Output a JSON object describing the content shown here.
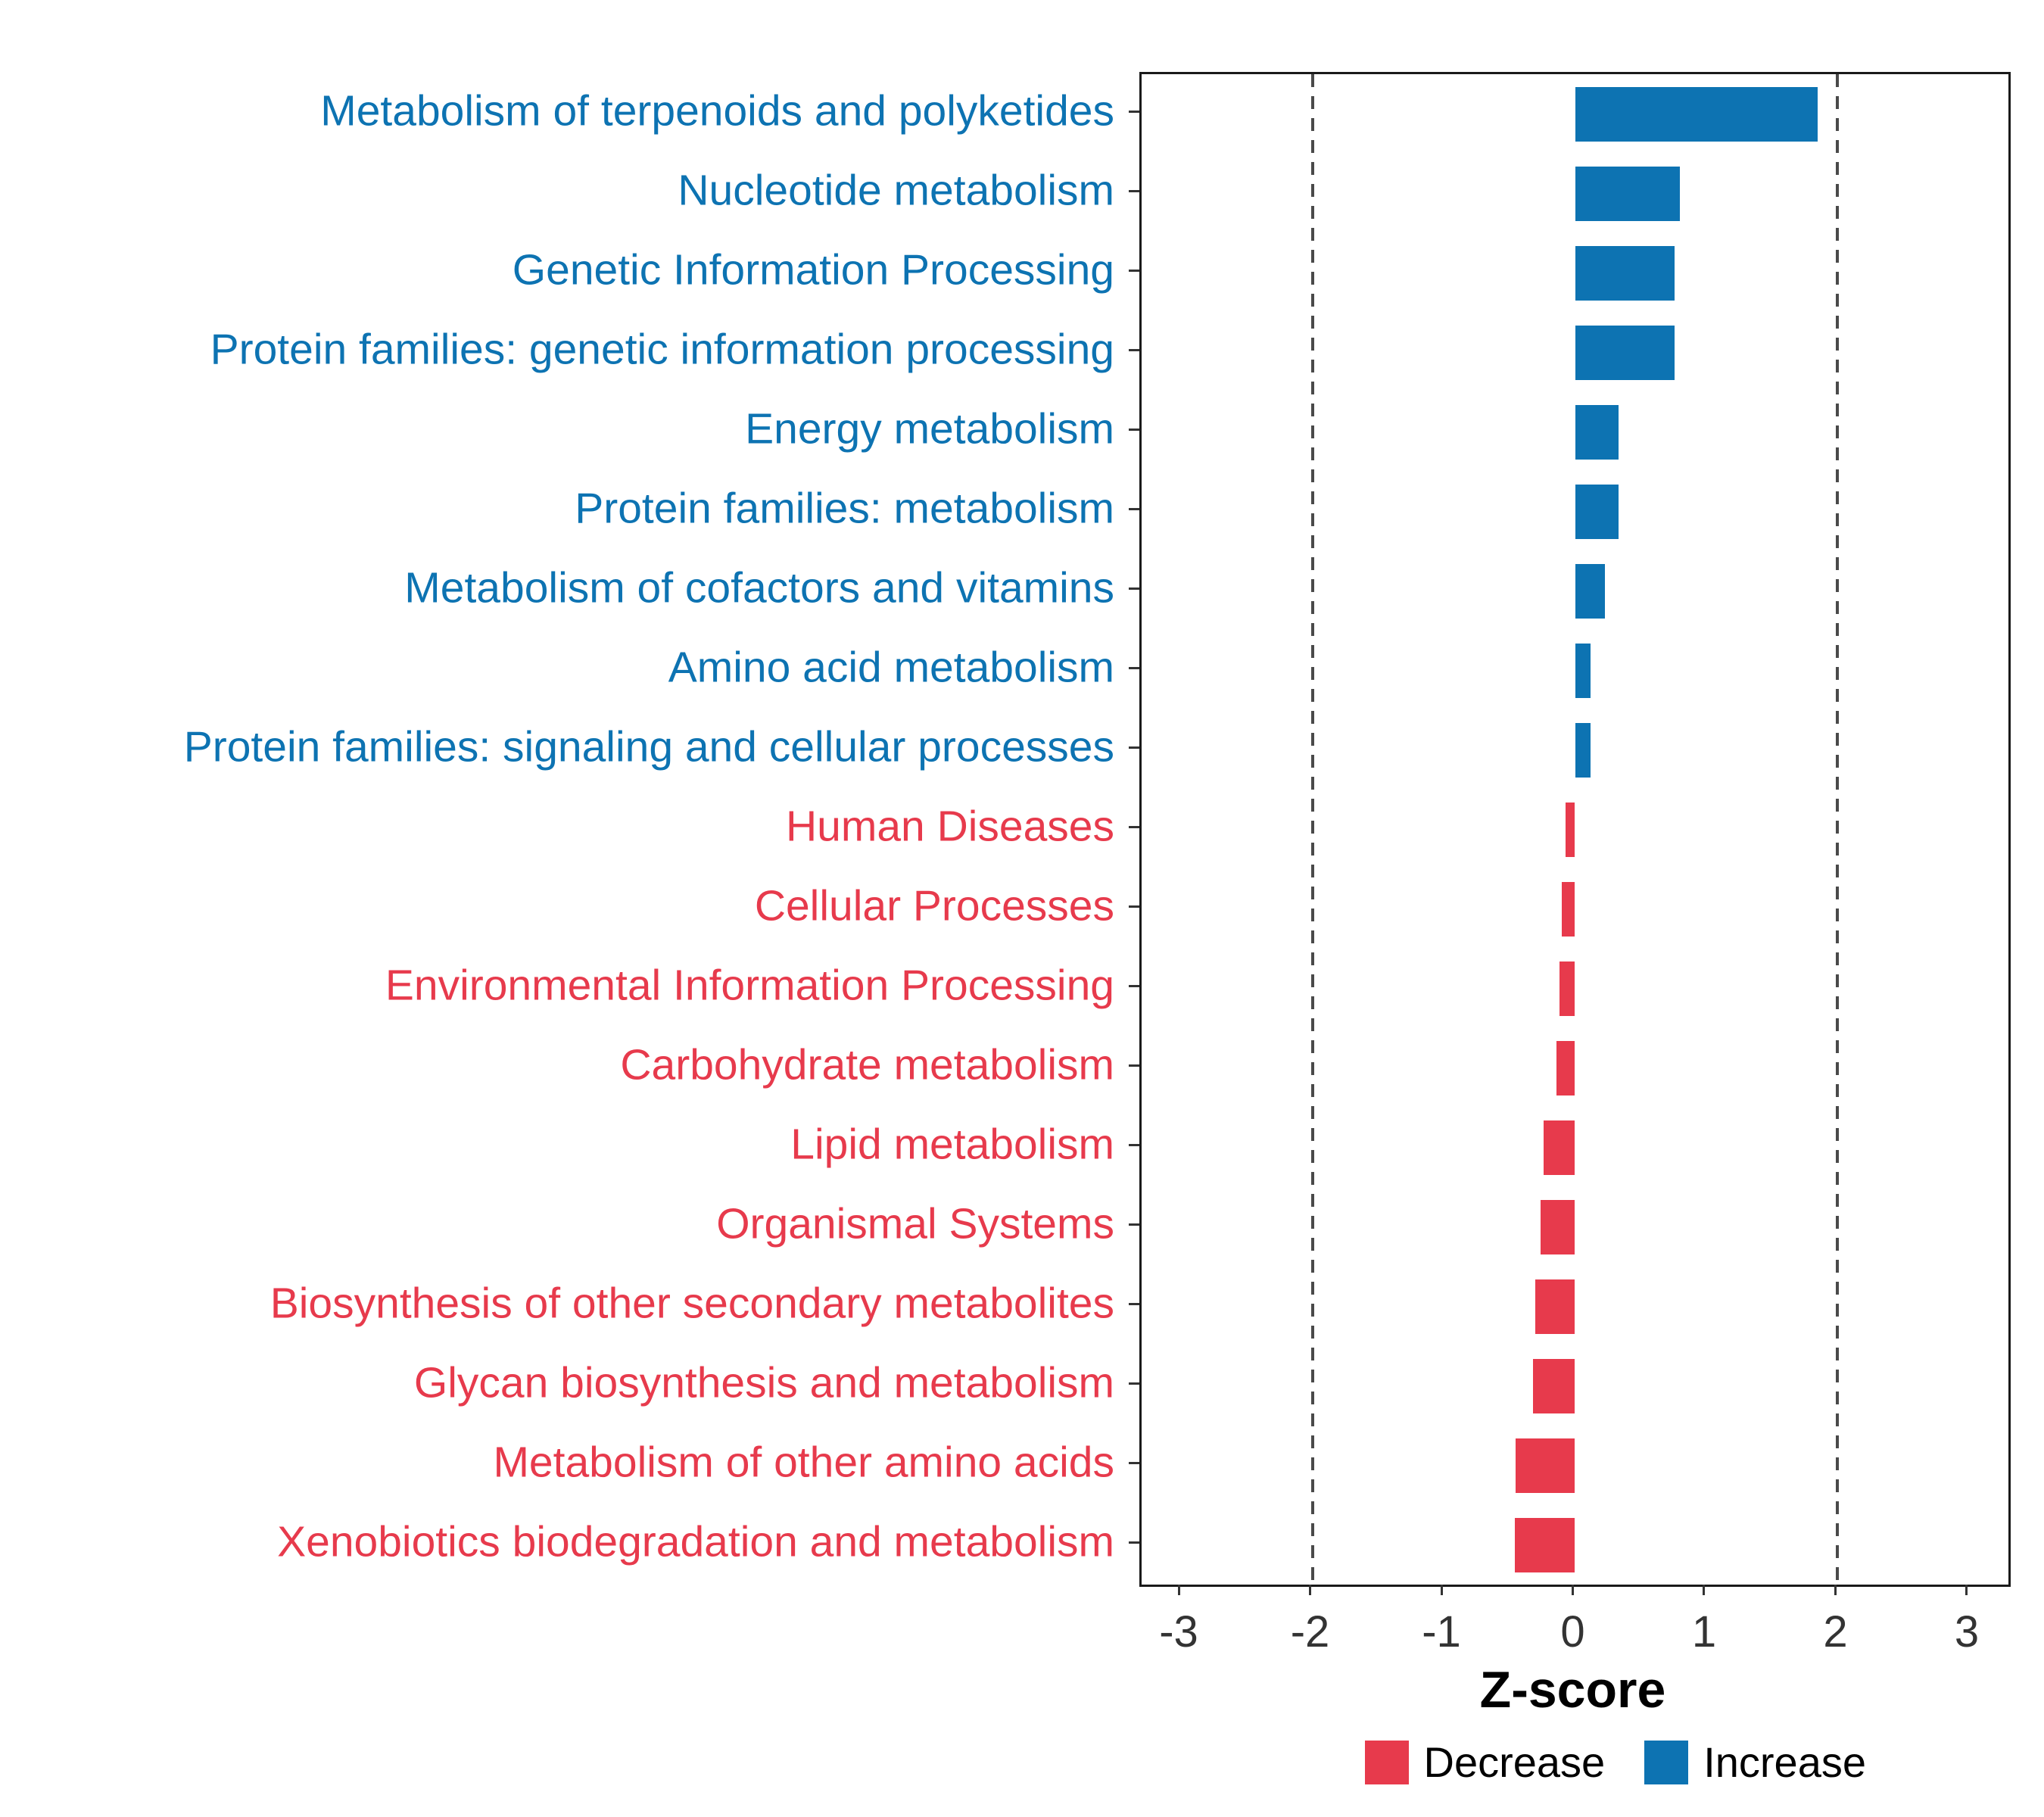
{
  "chart_data": {
    "type": "bar",
    "orientation": "horizontal",
    "title": "",
    "xlabel": "Z-score",
    "ylabel": "",
    "xlim": [
      -3.3,
      3.3
    ],
    "x_ticks": [
      -3,
      -2,
      -1,
      0,
      1,
      2,
      3
    ],
    "x_tick_labels": [
      "-3",
      "-2",
      "-1",
      "0",
      "1",
      "2",
      "3"
    ],
    "reference_lines_dashed": [
      -2,
      2
    ],
    "grid": false,
    "categories": [
      "Metabolism of terpenoids and polyketides",
      "Nucleotide metabolism",
      "Genetic Information Processing",
      "Protein families: genetic information processing",
      "Energy metabolism",
      "Protein families: metabolism",
      "Metabolism of cofactors and vitamins",
      "Amino acid metabolism",
      "Protein families: signaling and cellular processes",
      "Human Diseases",
      "Cellular Processes",
      "Environmental Information Processing",
      "Carbohydrate metabolism",
      "Lipid metabolism",
      "Organismal Systems",
      "Biosynthesis of other secondary metabolites",
      "Glycan biosynthesis and metabolism",
      "Metabolism of other amino acids",
      "Xenobiotics biodegradation and metabolism"
    ],
    "values": [
      1.85,
      0.8,
      0.76,
      0.76,
      0.33,
      0.33,
      0.23,
      0.12,
      0.12,
      -0.07,
      -0.1,
      -0.12,
      -0.14,
      -0.24,
      -0.26,
      -0.3,
      -0.32,
      -0.45,
      -0.46
    ],
    "groups": [
      "increase",
      "increase",
      "increase",
      "increase",
      "increase",
      "increase",
      "increase",
      "increase",
      "increase",
      "decrease",
      "decrease",
      "decrease",
      "decrease",
      "decrease",
      "decrease",
      "decrease",
      "decrease",
      "decrease",
      "decrease"
    ],
    "colors": {
      "increase": "#0d73b2",
      "decrease": "#e73a4c",
      "reference_line": "#4a4a4a",
      "axis_text": "#333333",
      "panel_border": "#1a1a1a"
    },
    "legend": {
      "position": "bottom-right",
      "items": [
        {
          "label": "Decrease",
          "key": "decrease"
        },
        {
          "label": "Increase",
          "key": "increase"
        }
      ]
    }
  }
}
